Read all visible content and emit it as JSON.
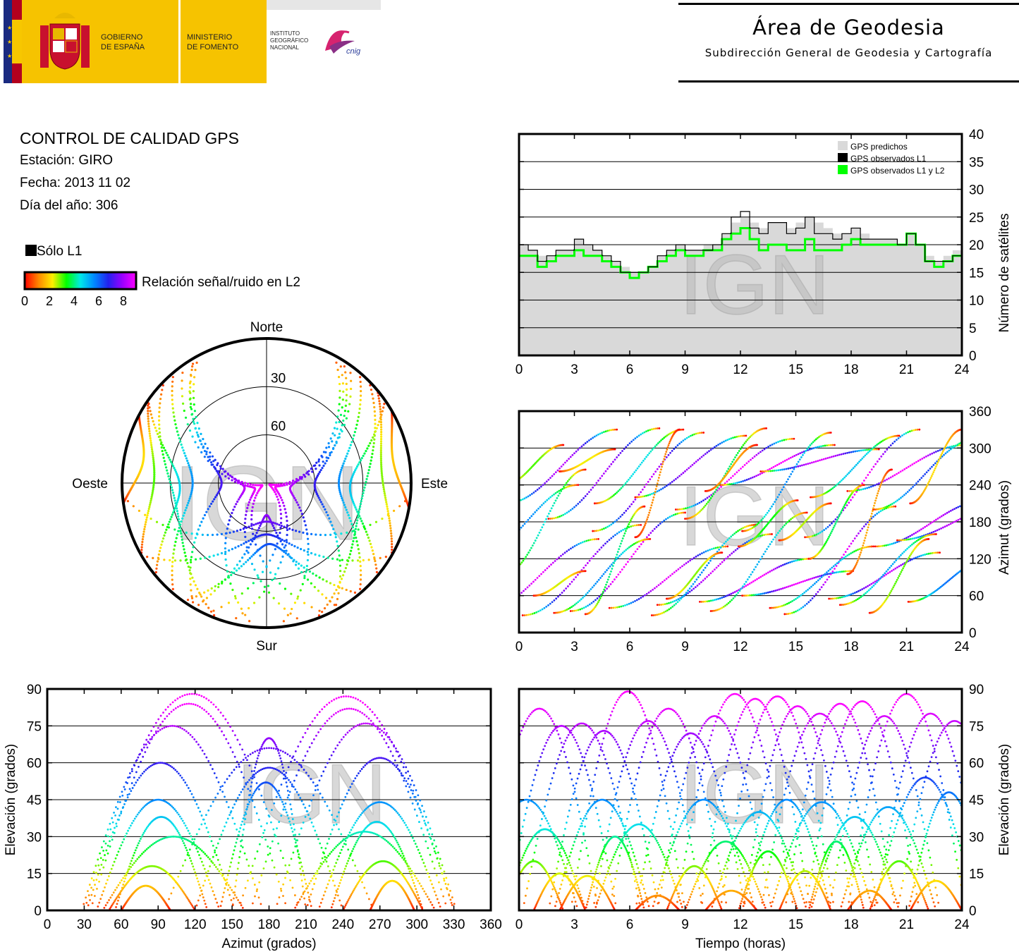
{
  "header": {
    "gov_line1": "GOBIERNO",
    "gov_line2": "DE ESPAÑA",
    "ministry_line1": "MINISTERIO",
    "ministry_line2": "DE FOMENTO",
    "ign_line1": "INSTITUTO",
    "ign_line2": "GEOGRÁFICO",
    "ign_line3": "NACIONAL",
    "cnig_text": "cnig",
    "area_title": "Área de Geodesia",
    "area_subtitle": "Subdirección General de Geodesia y Cartografía"
  },
  "info": {
    "title": "CONTROL DE CALIDAD GPS",
    "station": "Estación: GIRO",
    "date": "Fecha: 2013 11 02",
    "doy": "Día del año: 306"
  },
  "legend": {
    "l1_only": "Sólo L1",
    "snr_label": "Relación señal/ruido en L2",
    "snr_ticks": [
      "0",
      "2",
      "4",
      "6",
      "8"
    ],
    "snr_colors": [
      "#ff0000",
      "#ff8800",
      "#ffee00",
      "#00ff00",
      "#00e8e8",
      "#0088ff",
      "#2222ee",
      "#9900ff",
      "#ff00ff"
    ]
  },
  "watermark": "IGN",
  "colors": {
    "predicted": "#d9d9d9",
    "observed_l1": "#000000",
    "observed_l1l2": "#00ff00"
  },
  "chart_data": [
    {
      "id": "skyplot",
      "type": "scatter",
      "projection": "polar",
      "direction_labels": {
        "north": "Norte",
        "south": "Sur",
        "east": "Este",
        "west": "Oeste"
      },
      "ring_labels": [
        "30",
        "60"
      ],
      "passes": [
        {
          "az_rise": 32,
          "az_set": 152,
          "max_el": 60
        },
        {
          "az_rise": 210,
          "az_set": 330,
          "max_el": 62
        },
        {
          "az_rise": 28,
          "az_set": 175,
          "max_el": 75
        },
        {
          "az_rise": 185,
          "az_set": 332,
          "max_el": 76
        },
        {
          "az_rise": 35,
          "az_set": 195,
          "max_el": 84
        },
        {
          "az_rise": 165,
          "az_set": 325,
          "max_el": 82
        },
        {
          "az_rise": 40,
          "az_set": 140,
          "max_el": 45
        },
        {
          "az_rise": 220,
          "az_set": 320,
          "max_el": 44
        },
        {
          "az_rise": 45,
          "az_set": 160,
          "max_el": 30
        },
        {
          "az_rise": 200,
          "az_set": 315,
          "max_el": 32
        },
        {
          "az_rise": 50,
          "az_set": 120,
          "max_el": 18
        },
        {
          "az_rise": 240,
          "az_set": 305,
          "max_el": 20
        },
        {
          "az_rise": 60,
          "az_set": 100,
          "max_el": 10
        },
        {
          "az_rise": 262,
          "az_set": 298,
          "max_el": 12
        },
        {
          "az_rise": 30,
          "az_set": 205,
          "max_el": 88
        },
        {
          "az_rise": 155,
          "az_set": 330,
          "max_el": 87
        },
        {
          "az_rise": 55,
          "az_set": 130,
          "max_el": 38
        },
        {
          "az_rise": 230,
          "az_set": 305,
          "max_el": 36
        },
        {
          "az_rise": 140,
          "az_set": 215,
          "max_el": 52
        },
        {
          "az_rise": 150,
          "az_set": 210,
          "max_el": 70
        },
        {
          "az_rise": 120,
          "az_set": 240,
          "max_el": 58
        },
        {
          "az_rise": 95,
          "az_set": 265,
          "max_el": 66
        }
      ]
    },
    {
      "id": "satcount",
      "type": "area",
      "ylabel": "Número de satélites",
      "xlim": [
        0,
        24
      ],
      "ylim": [
        0,
        40
      ],
      "xticks": [
        "0",
        "3",
        "6",
        "9",
        "12",
        "15",
        "18",
        "21",
        "24"
      ],
      "yticks": [
        "0",
        "5",
        "10",
        "15",
        "20",
        "25",
        "30",
        "35",
        "40"
      ],
      "legend": [
        "GPS predichos",
        "GPS observados L1",
        "GPS observados L1 y L2"
      ],
      "legend_position": "top-right",
      "grid": true,
      "x": [
        0,
        0.5,
        1,
        1.5,
        2,
        2.5,
        3,
        3.5,
        4,
        4.5,
        5,
        5.5,
        6,
        6.5,
        7,
        7.5,
        8,
        8.5,
        9,
        9.5,
        10,
        10.5,
        11,
        11.5,
        12,
        12.5,
        13,
        13.5,
        14,
        14.5,
        15,
        15.5,
        16,
        16.5,
        17,
        17.5,
        18,
        18.5,
        19,
        19.5,
        20,
        20.5,
        21,
        21.5,
        22,
        22.5,
        23,
        23.5,
        24
      ],
      "series": [
        {
          "name": "GPS predichos",
          "values": [
            20,
            19,
            18,
            18,
            19,
            19,
            21,
            20,
            19,
            18,
            17,
            16,
            15,
            15,
            16,
            18,
            19,
            20,
            19,
            19,
            20,
            20,
            22,
            24,
            25,
            24,
            23,
            24,
            24,
            23,
            24,
            25,
            24,
            23,
            22,
            22,
            23,
            22,
            21,
            21,
            21,
            20,
            22,
            20,
            18,
            17,
            18,
            19,
            20
          ]
        },
        {
          "name": "GPS observados L1",
          "values": [
            20,
            19,
            17,
            18,
            19,
            19,
            21,
            20,
            19,
            18,
            17,
            15,
            15,
            15,
            16,
            18,
            19,
            20,
            19,
            19,
            19,
            20,
            22,
            25,
            26,
            23,
            22,
            24,
            24,
            22,
            23,
            25,
            22,
            22,
            21,
            22,
            23,
            21,
            21,
            21,
            21,
            20,
            22,
            20,
            17,
            17,
            17,
            18,
            20
          ]
        },
        {
          "name": "GPS observados L1 y L2",
          "values": [
            18,
            18,
            16,
            17,
            18,
            18,
            19,
            18,
            18,
            17,
            16,
            15,
            14,
            15,
            16,
            17,
            18,
            19,
            18,
            18,
            19,
            19,
            21,
            22,
            23,
            21,
            19,
            20,
            20,
            19,
            19,
            21,
            19,
            19,
            19,
            20,
            21,
            20,
            20,
            20,
            20,
            20,
            22,
            20,
            17,
            16,
            17,
            18,
            20
          ]
        }
      ]
    },
    {
      "id": "azimuth_time",
      "type": "scatter",
      "ylabel": "Azimut (grados)",
      "xlim": [
        0,
        24
      ],
      "ylim": [
        0,
        360
      ],
      "xticks": [
        "0",
        "3",
        "6",
        "9",
        "12",
        "15",
        "18",
        "21",
        "24"
      ],
      "yticks": [
        "0",
        "60",
        "120",
        "180",
        "240",
        "300",
        "360"
      ],
      "grid": true
    },
    {
      "id": "elevation_azimuth",
      "type": "scatter",
      "xlabel": "Azimut (grados)",
      "ylabel": "Elevación (grados)",
      "xlim": [
        0,
        360
      ],
      "ylim": [
        0,
        90
      ],
      "xticks": [
        "0",
        "30",
        "60",
        "90",
        "120",
        "150",
        "180",
        "210",
        "240",
        "270",
        "300",
        "330",
        "360"
      ],
      "yticks": [
        "0",
        "15",
        "30",
        "45",
        "60",
        "75",
        "90"
      ],
      "grid": true
    },
    {
      "id": "elevation_time",
      "type": "scatter",
      "xlabel": "Tiempo (horas)",
      "ylabel": "Elevación (grados)",
      "xlim": [
        0,
        24
      ],
      "ylim": [
        0,
        90
      ],
      "xticks": [
        "0",
        "3",
        "6",
        "9",
        "12",
        "15",
        "18",
        "21",
        "24"
      ],
      "yticks": [
        "0",
        "15",
        "30",
        "45",
        "60",
        "75",
        "90"
      ],
      "grid": true,
      "passes": [
        {
          "t_peak": 1.1,
          "half_width": 3.2,
          "max_el": 82
        },
        {
          "t_peak": 2.3,
          "half_width": 3.0,
          "max_el": 75
        },
        {
          "t_peak": 3.4,
          "half_width": 3.2,
          "max_el": 76
        },
        {
          "t_peak": 4.6,
          "half_width": 3.0,
          "max_el": 73
        },
        {
          "t_peak": 5.9,
          "half_width": 3.1,
          "max_el": 89
        },
        {
          "t_peak": 7.0,
          "half_width": 3.0,
          "max_el": 77
        },
        {
          "t_peak": 8.1,
          "half_width": 3.2,
          "max_el": 82
        },
        {
          "t_peak": 9.3,
          "half_width": 3.0,
          "max_el": 72
        },
        {
          "t_peak": 10.6,
          "half_width": 3.1,
          "max_el": 79
        },
        {
          "t_peak": 11.7,
          "half_width": 3.2,
          "max_el": 88
        },
        {
          "t_peak": 12.8,
          "half_width": 3.0,
          "max_el": 86
        },
        {
          "t_peak": 14.0,
          "half_width": 3.1,
          "max_el": 87
        },
        {
          "t_peak": 15.1,
          "half_width": 3.0,
          "max_el": 83
        },
        {
          "t_peak": 16.3,
          "half_width": 3.2,
          "max_el": 80
        },
        {
          "t_peak": 17.4,
          "half_width": 3.0,
          "max_el": 84
        },
        {
          "t_peak": 18.6,
          "half_width": 3.1,
          "max_el": 85
        },
        {
          "t_peak": 19.8,
          "half_width": 3.0,
          "max_el": 79
        },
        {
          "t_peak": 21.0,
          "half_width": 3.2,
          "max_el": 88
        },
        {
          "t_peak": 22.3,
          "half_width": 3.0,
          "max_el": 80
        },
        {
          "t_peak": 23.6,
          "half_width": 3.1,
          "max_el": 77
        },
        {
          "t_peak": 0.4,
          "half_width": 2.8,
          "max_el": 45
        },
        {
          "t_peak": 1.4,
          "half_width": 2.2,
          "max_el": 33
        },
        {
          "t_peak": 4.5,
          "half_width": 2.6,
          "max_el": 45
        },
        {
          "t_peak": 6.5,
          "half_width": 2.4,
          "max_el": 35
        },
        {
          "t_peak": 10.0,
          "half_width": 2.8,
          "max_el": 45
        },
        {
          "t_peak": 11.2,
          "half_width": 2.2,
          "max_el": 28
        },
        {
          "t_peak": 13.0,
          "half_width": 2.6,
          "max_el": 40
        },
        {
          "t_peak": 14.5,
          "half_width": 2.4,
          "max_el": 45
        },
        {
          "t_peak": 16.4,
          "half_width": 2.8,
          "max_el": 44
        },
        {
          "t_peak": 18.2,
          "half_width": 2.4,
          "max_el": 38
        },
        {
          "t_peak": 20.0,
          "half_width": 2.6,
          "max_el": 42
        },
        {
          "t_peak": 22.0,
          "half_width": 2.8,
          "max_el": 54
        },
        {
          "t_peak": 23.3,
          "half_width": 2.2,
          "max_el": 48
        },
        {
          "t_peak": 0.8,
          "half_width": 1.6,
          "max_el": 20
        },
        {
          "t_peak": 2.2,
          "half_width": 1.4,
          "max_el": 15
        },
        {
          "t_peak": 3.7,
          "half_width": 1.5,
          "max_el": 14
        },
        {
          "t_peak": 5.2,
          "half_width": 1.6,
          "max_el": 30
        },
        {
          "t_peak": 7.5,
          "half_width": 1.2,
          "max_el": 6
        },
        {
          "t_peak": 9.5,
          "half_width": 1.5,
          "max_el": 18
        },
        {
          "t_peak": 11.5,
          "half_width": 1.4,
          "max_el": 8
        },
        {
          "t_peak": 13.5,
          "half_width": 1.6,
          "max_el": 24
        },
        {
          "t_peak": 15.5,
          "half_width": 1.4,
          "max_el": 16
        },
        {
          "t_peak": 17.2,
          "half_width": 1.5,
          "max_el": 28
        },
        {
          "t_peak": 19.0,
          "half_width": 1.2,
          "max_el": 8
        },
        {
          "t_peak": 20.6,
          "half_width": 1.6,
          "max_el": 20
        },
        {
          "t_peak": 22.6,
          "half_width": 1.4,
          "max_el": 12
        }
      ]
    }
  ]
}
